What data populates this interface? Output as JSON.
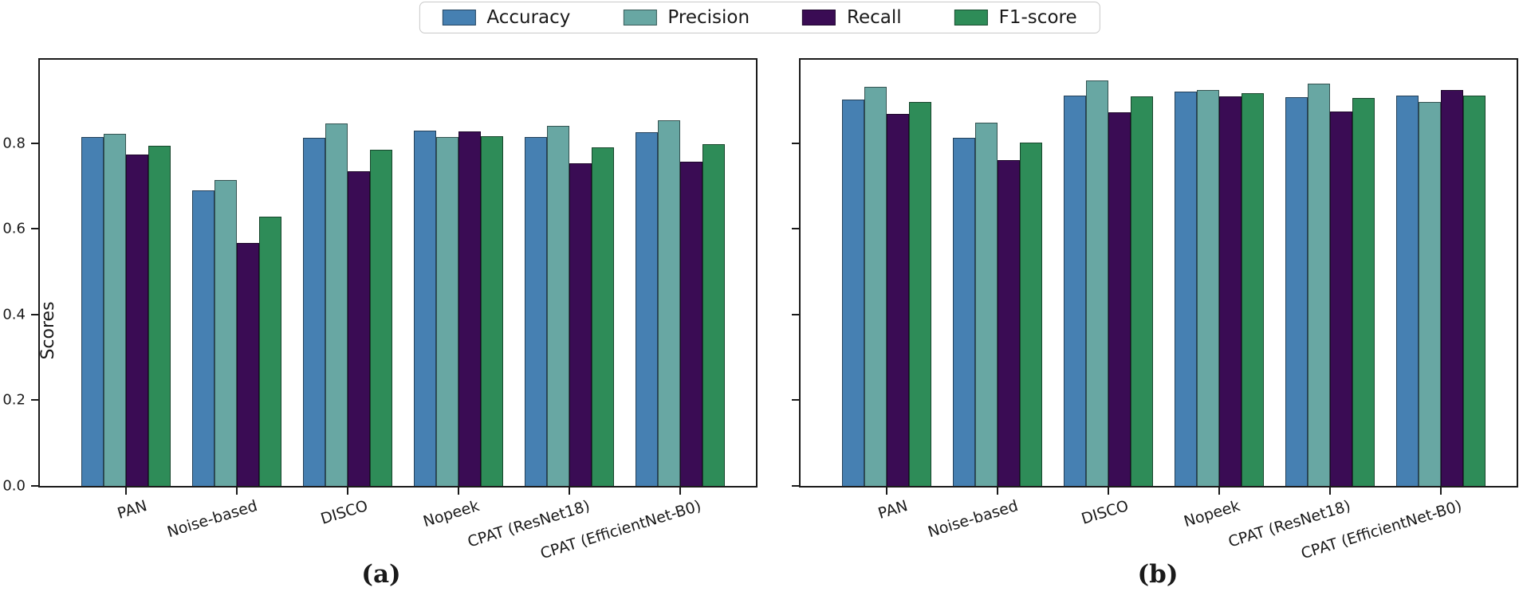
{
  "ylabel": "Scores",
  "captions": {
    "a": "(a)",
    "b": "(b)"
  },
  "legend": [
    "Accuracy",
    "Precision",
    "Recall",
    "F1-score"
  ],
  "colors": {
    "accuracy": "#4680b2",
    "precision": "#68a7a3",
    "recall": "#3a0c54",
    "f1": "#2e8c58",
    "spine": "#1a1a1a"
  },
  "chart_data": [
    {
      "type": "bar",
      "title": "(a)",
      "ylabel": "Scores",
      "categories": [
        "PAN",
        "Noise-based",
        "DISCO",
        "Nopeek",
        "CPAT (ResNet18)",
        "CPAT (EfficientNet-B0)"
      ],
      "series": [
        {
          "name": "Accuracy",
          "color": "#4680b2",
          "values": [
            0.815,
            0.69,
            0.813,
            0.83,
            0.815,
            0.826
          ]
        },
        {
          "name": "Precision",
          "color": "#68a7a3",
          "values": [
            0.822,
            0.714,
            0.847,
            0.815,
            0.84,
            0.854
          ]
        },
        {
          "name": "Recall",
          "color": "#3a0c54",
          "values": [
            0.774,
            0.568,
            0.735,
            0.827,
            0.754,
            0.757
          ]
        },
        {
          "name": "F1-score",
          "color": "#2e8c58",
          "values": [
            0.795,
            0.629,
            0.784,
            0.817,
            0.79,
            0.798
          ]
        }
      ],
      "ylim": [
        0,
        0.995
      ],
      "yticks": [
        0.0,
        0.2,
        0.4,
        0.6,
        0.8
      ],
      "show_ytick_labels": true,
      "grid": false,
      "legend_position": "top-center-above-figure"
    },
    {
      "type": "bar",
      "title": "(b)",
      "ylabel": "",
      "categories": [
        "PAN",
        "Noise-based",
        "DISCO",
        "Nopeek",
        "CPAT (ResNet18)",
        "CPAT (EfficientNet-B0)"
      ],
      "series": [
        {
          "name": "Accuracy",
          "color": "#4680b2",
          "values": [
            0.902,
            0.812,
            0.912,
            0.92,
            0.908,
            0.911
          ]
        },
        {
          "name": "Precision",
          "color": "#68a7a3",
          "values": [
            0.931,
            0.848,
            0.946,
            0.925,
            0.94,
            0.897
          ]
        },
        {
          "name": "Recall",
          "color": "#3a0c54",
          "values": [
            0.868,
            0.761,
            0.873,
            0.909,
            0.874,
            0.925
          ]
        },
        {
          "name": "F1-score",
          "color": "#2e8c58",
          "values": [
            0.897,
            0.801,
            0.909,
            0.917,
            0.905,
            0.911
          ]
        }
      ],
      "ylim": [
        0,
        0.995
      ],
      "yticks": [
        0.0,
        0.2,
        0.4,
        0.6,
        0.8
      ],
      "show_ytick_labels": false,
      "grid": false,
      "legend_position": "top-center-above-figure"
    }
  ]
}
